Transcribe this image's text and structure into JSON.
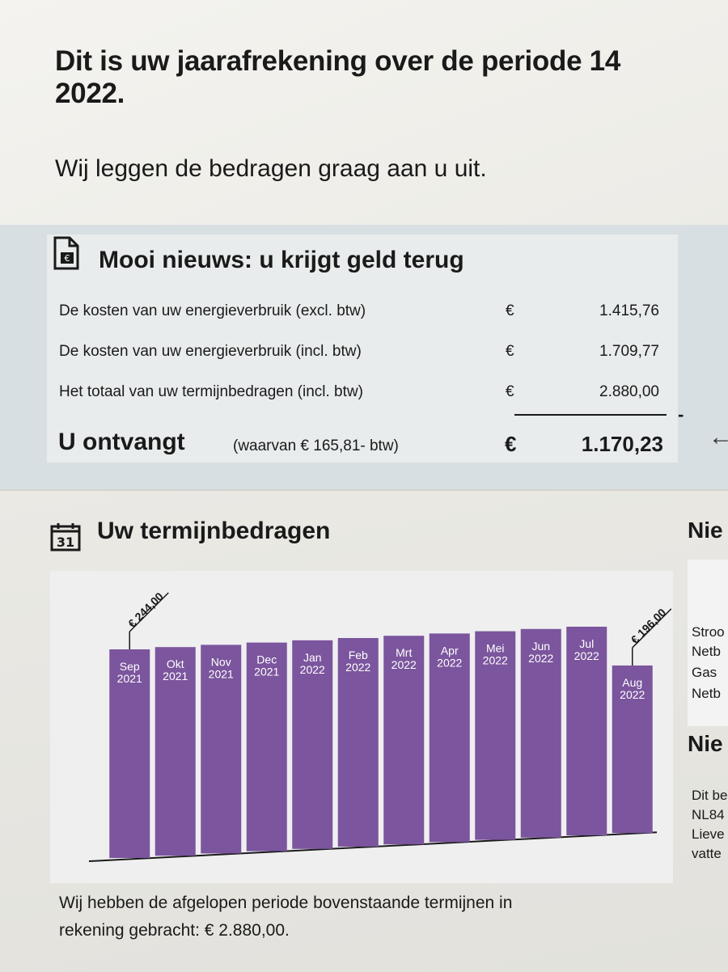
{
  "header": {
    "title_line1": "Dit is uw jaarafrekening over de periode 14",
    "title_line2": "2022.",
    "intro": "Wij leggen de bedragen graag aan u uit."
  },
  "refund": {
    "title": "Mooi nieuws: u krijgt geld terug",
    "icon_text": "€",
    "rows": [
      {
        "label": "De kosten van uw energieverbruik (excl. btw)",
        "currency": "€",
        "amount": "1.415,76"
      },
      {
        "label": "De kosten van uw energieverbruik (incl. btw)",
        "currency": "€",
        "amount": "1.709,77"
      },
      {
        "label": "Het totaal van uw termijnbedragen (incl. btw)",
        "currency": "€",
        "amount": "2.880,00"
      }
    ],
    "minus_sign": "-",
    "total_label": "U ontvangt",
    "total_note": "(waarvan € 165,81- btw)",
    "total_currency": "€",
    "total_amount": "1.170,23",
    "arrow": "←"
  },
  "installments": {
    "title": "Uw termijnbedragen",
    "calendar_day": "31",
    "footer_line1": "Wij hebben de afgelopen periode bovenstaande termijnen in",
    "footer_line2": "rekening gebracht: € 2.880,00."
  },
  "right_column": {
    "header1": "Nie",
    "lines1": [
      "Stroo",
      "Netb",
      "Gas",
      "Netb"
    ],
    "header2": "Nie",
    "lines2": [
      "Dit be",
      "NL84",
      "Lieve",
      "vatte"
    ]
  },
  "colors": {
    "bar": "#7b559d",
    "bar_text": "#ffffff"
  },
  "chart_data": {
    "type": "bar",
    "title": "Uw termijnbedragen",
    "categories": [
      [
        "Sep",
        "2021"
      ],
      [
        "Okt",
        "2021"
      ],
      [
        "Nov",
        "2021"
      ],
      [
        "Dec",
        "2021"
      ],
      [
        "Jan",
        "2022"
      ],
      [
        "Feb",
        "2022"
      ],
      [
        "Mrt",
        "2022"
      ],
      [
        "Apr",
        "2022"
      ],
      [
        "Mei",
        "2022"
      ],
      [
        "Jun",
        "2022"
      ],
      [
        "Jul",
        "2022"
      ],
      [
        "Aug",
        "2022"
      ]
    ],
    "values": [
      244,
      244,
      244,
      244,
      244,
      244,
      244,
      244,
      244,
      244,
      244,
      196
    ],
    "annotations": [
      {
        "index": 0,
        "text": "€ 244,00"
      },
      {
        "index": 11,
        "text": "€ 196,00"
      }
    ],
    "ylim": [
      0,
      244
    ]
  }
}
